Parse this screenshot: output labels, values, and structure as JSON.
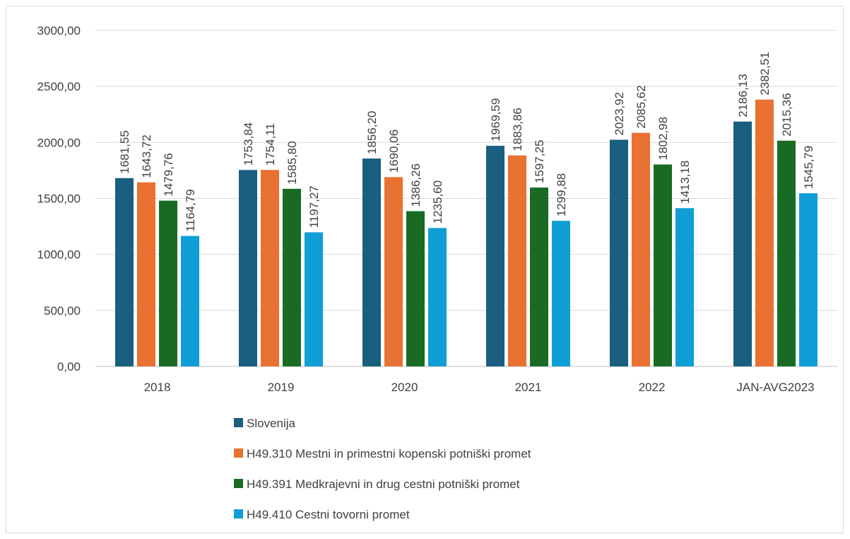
{
  "chart_data": {
    "type": "bar",
    "categories": [
      "2018",
      "2019",
      "2020",
      "2021",
      "2022",
      "JAN-AVG2023"
    ],
    "series": [
      {
        "name": "Slovenija",
        "color": "#1a5e80",
        "values": [
          1681.55,
          1753.84,
          1856.2,
          1969.59,
          2023.92,
          2186.13
        ],
        "labels": [
          "1681,55",
          "1753,84",
          "1856,20",
          "1969,59",
          "2023,92",
          "2186,13"
        ]
      },
      {
        "name": "H49.310 Mestni in primestni kopenski potniški promet",
        "color": "#e97132",
        "values": [
          1643.72,
          1754.11,
          1690.06,
          1883.86,
          2085.62,
          2382.51
        ],
        "labels": [
          "1643,72",
          "1754,11",
          "1690,06",
          "1883,86",
          "2085,62",
          "2382,51"
        ]
      },
      {
        "name": "H49.391 Medkrajevni in drug cestni potniški promet",
        "color": "#196b24",
        "values": [
          1479.76,
          1585.8,
          1386.26,
          1597.25,
          1802.98,
          2015.36
        ],
        "labels": [
          "1479,76",
          "1585,80",
          "1386,26",
          "1597,25",
          "1802,98",
          "2015,36"
        ]
      },
      {
        "name": "H49.410 Cestni tovorni promet",
        "color": "#0f9ed5",
        "values": [
          1164.79,
          1197.27,
          1235.6,
          1299.88,
          1413.18,
          1545.79
        ],
        "labels": [
          "1164,79",
          "1197,27",
          "1235,60",
          "1299,88",
          "1413,18",
          "1545,79"
        ]
      }
    ],
    "yticks": [
      "0,00",
      "500,00",
      "1000,00",
      "1500,00",
      "2000,00",
      "2500,00",
      "3000,00"
    ],
    "ylim": [
      0,
      3000
    ],
    "grid": true,
    "legend_position": "bottom"
  }
}
